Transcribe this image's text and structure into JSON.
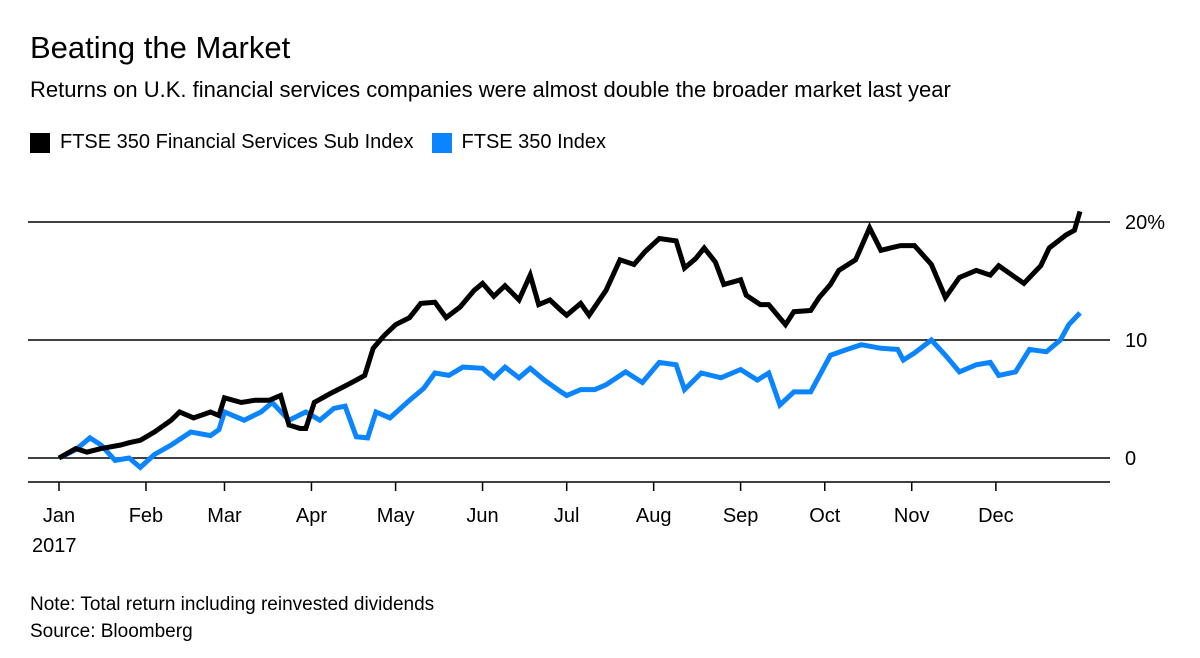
{
  "chart_data": {
    "type": "line",
    "title": "Beating the Market",
    "subtitle": "Returns on U.K. financial services companies were almost double the broader market last year",
    "note": "Note: Total return including reinvested dividends",
    "source": "Source: Bloomberg",
    "year_label": "2017",
    "x_tick_labels": [
      "Jan",
      "Feb",
      "Mar",
      "Apr",
      "May",
      "Jun",
      "Jul",
      "Aug",
      "Sep",
      "Oct",
      "Nov",
      "Dec"
    ],
    "y_ticks": [
      {
        "value": 0,
        "label": "0"
      },
      {
        "value": 10,
        "label": "10"
      },
      {
        "value": 20,
        "label": "20%"
      }
    ],
    "ylim": [
      -2,
      21
    ],
    "xlim": [
      "2017-01-01",
      "2017-12-31"
    ],
    "grid": true,
    "legend_position": "top-left",
    "series": [
      {
        "name": "FTSE 350 Financial Services Sub Index",
        "color": "#000000",
        "points": [
          [
            "2017-01-01",
            0
          ],
          [
            "2017-01-07",
            0.8
          ],
          [
            "2017-01-11",
            0.5
          ],
          [
            "2017-01-16",
            0.8
          ],
          [
            "2017-01-23",
            1.1
          ],
          [
            "2017-01-26",
            1.3
          ],
          [
            "2017-01-30",
            1.5
          ],
          [
            "2017-02-04",
            2.2
          ],
          [
            "2017-02-10",
            3.2
          ],
          [
            "2017-02-13",
            3.9
          ],
          [
            "2017-02-18",
            3.4
          ],
          [
            "2017-02-24",
            3.9
          ],
          [
            "2017-02-27",
            3.6
          ],
          [
            "2017-03-01",
            5.1
          ],
          [
            "2017-03-07",
            4.7
          ],
          [
            "2017-03-12",
            4.9
          ],
          [
            "2017-03-17",
            4.9
          ],
          [
            "2017-03-21",
            5.3
          ],
          [
            "2017-03-24",
            2.8
          ],
          [
            "2017-03-28",
            2.5
          ],
          [
            "2017-03-30",
            2.5
          ],
          [
            "2017-04-02",
            4.7
          ],
          [
            "2017-04-08",
            5.5
          ],
          [
            "2017-04-13",
            6.1
          ],
          [
            "2017-04-17",
            6.6
          ],
          [
            "2017-04-20",
            7.0
          ],
          [
            "2017-04-23",
            9.3
          ],
          [
            "2017-04-27",
            10.4
          ],
          [
            "2017-05-01",
            11.3
          ],
          [
            "2017-05-06",
            11.9
          ],
          [
            "2017-05-10",
            13.1
          ],
          [
            "2017-05-15",
            13.2
          ],
          [
            "2017-05-19",
            11.9
          ],
          [
            "2017-05-24",
            12.8
          ],
          [
            "2017-05-29",
            14.2
          ],
          [
            "2017-06-01",
            14.8
          ],
          [
            "2017-06-05",
            13.7
          ],
          [
            "2017-06-09",
            14.6
          ],
          [
            "2017-06-14",
            13.4
          ],
          [
            "2017-06-18",
            15.5
          ],
          [
            "2017-06-21",
            13.0
          ],
          [
            "2017-06-25",
            13.4
          ],
          [
            "2017-06-29",
            12.5
          ],
          [
            "2017-07-01",
            12.1
          ],
          [
            "2017-07-06",
            13.1
          ],
          [
            "2017-07-09",
            12.1
          ],
          [
            "2017-07-15",
            14.2
          ],
          [
            "2017-07-20",
            16.8
          ],
          [
            "2017-07-25",
            16.4
          ],
          [
            "2017-07-29",
            17.5
          ],
          [
            "2017-08-03",
            18.6
          ],
          [
            "2017-08-09",
            18.4
          ],
          [
            "2017-08-12",
            16.1
          ],
          [
            "2017-08-16",
            16.9
          ],
          [
            "2017-08-19",
            17.8
          ],
          [
            "2017-08-23",
            16.6
          ],
          [
            "2017-08-26",
            14.7
          ],
          [
            "2017-09-01",
            15.1
          ],
          [
            "2017-09-03",
            13.8
          ],
          [
            "2017-09-08",
            13.0
          ],
          [
            "2017-09-11",
            13.0
          ],
          [
            "2017-09-17",
            11.3
          ],
          [
            "2017-09-20",
            12.4
          ],
          [
            "2017-09-26",
            12.5
          ],
          [
            "2017-09-29",
            13.6
          ],
          [
            "2017-10-03",
            14.7
          ],
          [
            "2017-10-06",
            15.9
          ],
          [
            "2017-10-12",
            16.8
          ],
          [
            "2017-10-17",
            19.5
          ],
          [
            "2017-10-21",
            17.6
          ],
          [
            "2017-10-28",
            18.0
          ],
          [
            "2017-11-02",
            18.0
          ],
          [
            "2017-11-08",
            16.4
          ],
          [
            "2017-11-13",
            13.6
          ],
          [
            "2017-11-18",
            15.3
          ],
          [
            "2017-11-24",
            15.9
          ],
          [
            "2017-11-29",
            15.5
          ],
          [
            "2017-12-02",
            16.3
          ],
          [
            "2017-12-08",
            15.3
          ],
          [
            "2017-12-11",
            14.8
          ],
          [
            "2017-12-17",
            16.3
          ],
          [
            "2017-12-20",
            17.8
          ],
          [
            "2017-12-26",
            18.9
          ],
          [
            "2017-12-29",
            19.3
          ],
          [
            "2017-12-31",
            20.9
          ]
        ]
      },
      {
        "name": "FTSE 350 Index",
        "color": "#0a84ff",
        "points": [
          [
            "2017-01-01",
            0
          ],
          [
            "2017-01-07",
            0.7
          ],
          [
            "2017-01-12",
            1.7
          ],
          [
            "2017-01-16",
            1.1
          ],
          [
            "2017-01-21",
            -0.2
          ],
          [
            "2017-01-26",
            0
          ],
          [
            "2017-01-30",
            -0.8
          ],
          [
            "2017-02-04",
            0.3
          ],
          [
            "2017-02-10",
            1.1
          ],
          [
            "2017-02-17",
            2.2
          ],
          [
            "2017-02-24",
            1.9
          ],
          [
            "2017-02-27",
            2.4
          ],
          [
            "2017-03-01",
            3.9
          ],
          [
            "2017-03-08",
            3.2
          ],
          [
            "2017-03-14",
            3.9
          ],
          [
            "2017-03-18",
            4.7
          ],
          [
            "2017-03-24",
            3.2
          ],
          [
            "2017-03-30",
            3.9
          ],
          [
            "2017-04-04",
            3.2
          ],
          [
            "2017-04-09",
            4.2
          ],
          [
            "2017-04-13",
            4.4
          ],
          [
            "2017-04-17",
            1.8
          ],
          [
            "2017-04-21",
            1.7
          ],
          [
            "2017-04-24",
            3.9
          ],
          [
            "2017-04-29",
            3.4
          ],
          [
            "2017-05-06",
            4.9
          ],
          [
            "2017-05-11",
            5.9
          ],
          [
            "2017-05-15",
            7.2
          ],
          [
            "2017-05-20",
            7.0
          ],
          [
            "2017-05-25",
            7.7
          ],
          [
            "2017-06-01",
            7.6
          ],
          [
            "2017-06-05",
            6.8
          ],
          [
            "2017-06-09",
            7.7
          ],
          [
            "2017-06-14",
            6.8
          ],
          [
            "2017-06-18",
            7.6
          ],
          [
            "2017-06-23",
            6.6
          ],
          [
            "2017-06-29",
            5.6
          ],
          [
            "2017-07-01",
            5.3
          ],
          [
            "2017-07-06",
            5.8
          ],
          [
            "2017-07-11",
            5.8
          ],
          [
            "2017-07-15",
            6.2
          ],
          [
            "2017-07-22",
            7.3
          ],
          [
            "2017-07-28",
            6.4
          ],
          [
            "2017-08-03",
            8.1
          ],
          [
            "2017-08-09",
            7.9
          ],
          [
            "2017-08-12",
            5.8
          ],
          [
            "2017-08-18",
            7.2
          ],
          [
            "2017-08-25",
            6.8
          ],
          [
            "2017-09-01",
            7.5
          ],
          [
            "2017-09-07",
            6.6
          ],
          [
            "2017-09-11",
            7.2
          ],
          [
            "2017-09-15",
            4.5
          ],
          [
            "2017-09-20",
            5.6
          ],
          [
            "2017-09-26",
            5.6
          ],
          [
            "2017-10-03",
            8.7
          ],
          [
            "2017-10-09",
            9.2
          ],
          [
            "2017-10-14",
            9.6
          ],
          [
            "2017-10-21",
            9.3
          ],
          [
            "2017-10-27",
            9.2
          ],
          [
            "2017-10-29",
            8.3
          ],
          [
            "2017-11-02",
            8.9
          ],
          [
            "2017-11-08",
            10.0
          ],
          [
            "2017-11-13",
            8.7
          ],
          [
            "2017-11-18",
            7.3
          ],
          [
            "2017-11-24",
            7.9
          ],
          [
            "2017-11-29",
            8.1
          ],
          [
            "2017-12-02",
            7.0
          ],
          [
            "2017-12-08",
            7.3
          ],
          [
            "2017-12-13",
            9.2
          ],
          [
            "2017-12-19",
            9.0
          ],
          [
            "2017-12-24",
            10.0
          ],
          [
            "2017-12-27",
            11.3
          ],
          [
            "2017-12-31",
            12.3
          ]
        ]
      }
    ]
  }
}
